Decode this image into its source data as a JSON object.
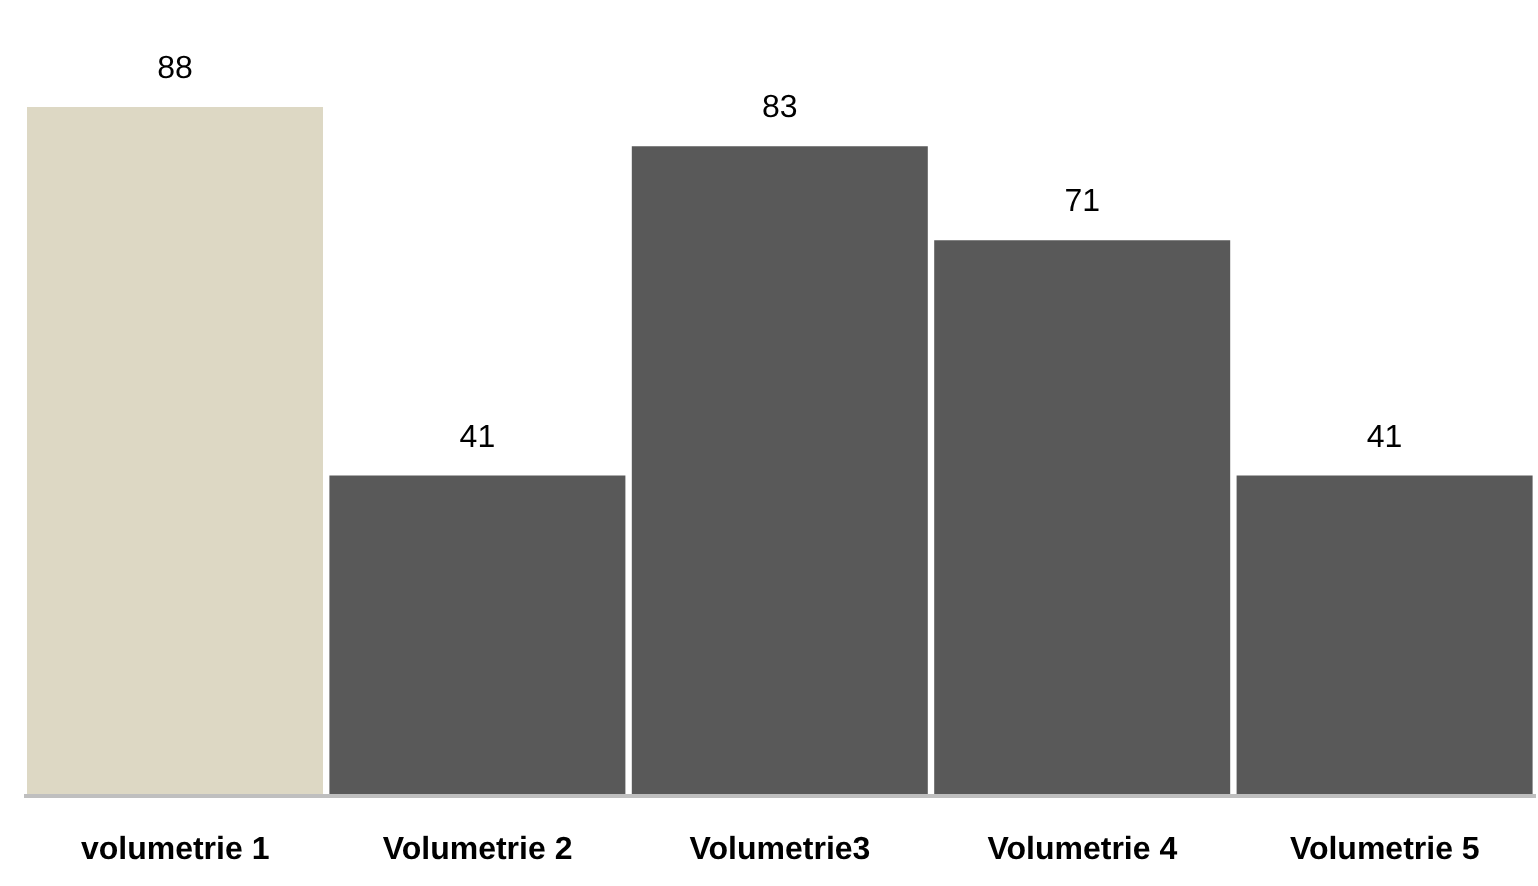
{
  "chart_data": {
    "type": "bar",
    "categories": [
      "volumetrie 1",
      "Volumetrie 2",
      "Volumetrie3",
      "Volumetrie 4",
      "Volumetrie 5"
    ],
    "values": [
      88,
      41,
      83,
      71,
      41
    ],
    "colors": [
      "#ddd8c4",
      "#595959",
      "#595959",
      "#595959",
      "#595959"
    ],
    "data_labels": true,
    "grid": false,
    "legend": false
  }
}
